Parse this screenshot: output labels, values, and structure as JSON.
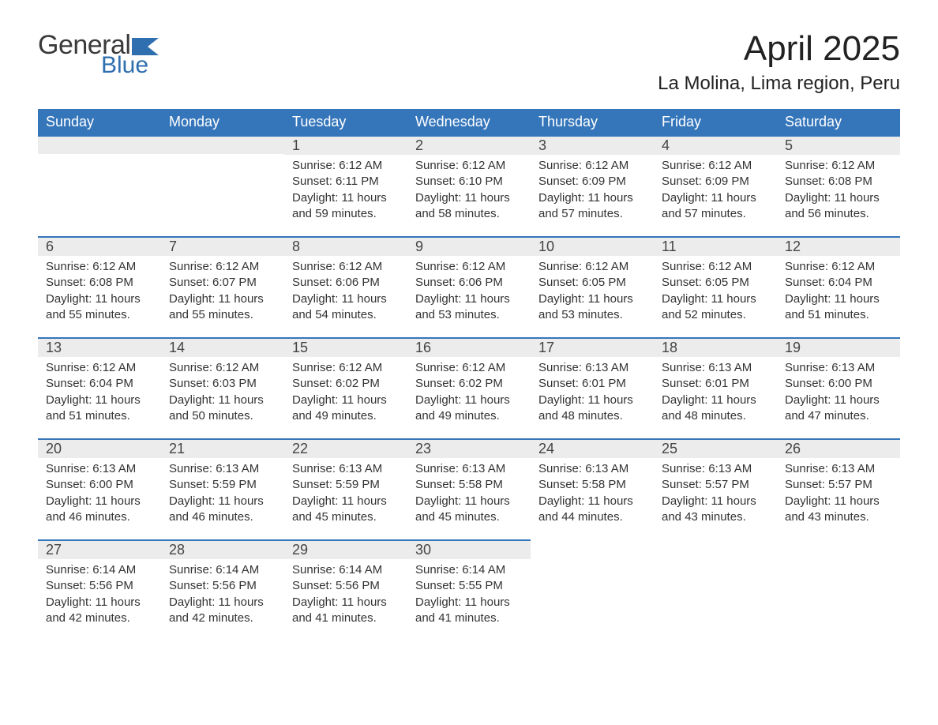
{
  "brand": {
    "word1": "General",
    "word2": "Blue",
    "accent_color": "#2f6fb0"
  },
  "title": "April 2025",
  "location": "La Molina, Lima region, Peru",
  "colors": {
    "header_bg": "#3576bb",
    "header_text": "#ffffff",
    "daynum_bg": "#ececec",
    "row_border": "#3576bb",
    "body_text": "#333333"
  },
  "weekdays": [
    "Sunday",
    "Monday",
    "Tuesday",
    "Wednesday",
    "Thursday",
    "Friday",
    "Saturday"
  ],
  "weeks": [
    [
      null,
      null,
      {
        "n": "1",
        "sr": "Sunrise: 6:12 AM",
        "ss": "Sunset: 6:11 PM",
        "dl": "Daylight: 11 hours and 59 minutes."
      },
      {
        "n": "2",
        "sr": "Sunrise: 6:12 AM",
        "ss": "Sunset: 6:10 PM",
        "dl": "Daylight: 11 hours and 58 minutes."
      },
      {
        "n": "3",
        "sr": "Sunrise: 6:12 AM",
        "ss": "Sunset: 6:09 PM",
        "dl": "Daylight: 11 hours and 57 minutes."
      },
      {
        "n": "4",
        "sr": "Sunrise: 6:12 AM",
        "ss": "Sunset: 6:09 PM",
        "dl": "Daylight: 11 hours and 57 minutes."
      },
      {
        "n": "5",
        "sr": "Sunrise: 6:12 AM",
        "ss": "Sunset: 6:08 PM",
        "dl": "Daylight: 11 hours and 56 minutes."
      }
    ],
    [
      {
        "n": "6",
        "sr": "Sunrise: 6:12 AM",
        "ss": "Sunset: 6:08 PM",
        "dl": "Daylight: 11 hours and 55 minutes."
      },
      {
        "n": "7",
        "sr": "Sunrise: 6:12 AM",
        "ss": "Sunset: 6:07 PM",
        "dl": "Daylight: 11 hours and 55 minutes."
      },
      {
        "n": "8",
        "sr": "Sunrise: 6:12 AM",
        "ss": "Sunset: 6:06 PM",
        "dl": "Daylight: 11 hours and 54 minutes."
      },
      {
        "n": "9",
        "sr": "Sunrise: 6:12 AM",
        "ss": "Sunset: 6:06 PM",
        "dl": "Daylight: 11 hours and 53 minutes."
      },
      {
        "n": "10",
        "sr": "Sunrise: 6:12 AM",
        "ss": "Sunset: 6:05 PM",
        "dl": "Daylight: 11 hours and 53 minutes."
      },
      {
        "n": "11",
        "sr": "Sunrise: 6:12 AM",
        "ss": "Sunset: 6:05 PM",
        "dl": "Daylight: 11 hours and 52 minutes."
      },
      {
        "n": "12",
        "sr": "Sunrise: 6:12 AM",
        "ss": "Sunset: 6:04 PM",
        "dl": "Daylight: 11 hours and 51 minutes."
      }
    ],
    [
      {
        "n": "13",
        "sr": "Sunrise: 6:12 AM",
        "ss": "Sunset: 6:04 PM",
        "dl": "Daylight: 11 hours and 51 minutes."
      },
      {
        "n": "14",
        "sr": "Sunrise: 6:12 AM",
        "ss": "Sunset: 6:03 PM",
        "dl": "Daylight: 11 hours and 50 minutes."
      },
      {
        "n": "15",
        "sr": "Sunrise: 6:12 AM",
        "ss": "Sunset: 6:02 PM",
        "dl": "Daylight: 11 hours and 49 minutes."
      },
      {
        "n": "16",
        "sr": "Sunrise: 6:12 AM",
        "ss": "Sunset: 6:02 PM",
        "dl": "Daylight: 11 hours and 49 minutes."
      },
      {
        "n": "17",
        "sr": "Sunrise: 6:13 AM",
        "ss": "Sunset: 6:01 PM",
        "dl": "Daylight: 11 hours and 48 minutes."
      },
      {
        "n": "18",
        "sr": "Sunrise: 6:13 AM",
        "ss": "Sunset: 6:01 PM",
        "dl": "Daylight: 11 hours and 48 minutes."
      },
      {
        "n": "19",
        "sr": "Sunrise: 6:13 AM",
        "ss": "Sunset: 6:00 PM",
        "dl": "Daylight: 11 hours and 47 minutes."
      }
    ],
    [
      {
        "n": "20",
        "sr": "Sunrise: 6:13 AM",
        "ss": "Sunset: 6:00 PM",
        "dl": "Daylight: 11 hours and 46 minutes."
      },
      {
        "n": "21",
        "sr": "Sunrise: 6:13 AM",
        "ss": "Sunset: 5:59 PM",
        "dl": "Daylight: 11 hours and 46 minutes."
      },
      {
        "n": "22",
        "sr": "Sunrise: 6:13 AM",
        "ss": "Sunset: 5:59 PM",
        "dl": "Daylight: 11 hours and 45 minutes."
      },
      {
        "n": "23",
        "sr": "Sunrise: 6:13 AM",
        "ss": "Sunset: 5:58 PM",
        "dl": "Daylight: 11 hours and 45 minutes."
      },
      {
        "n": "24",
        "sr": "Sunrise: 6:13 AM",
        "ss": "Sunset: 5:58 PM",
        "dl": "Daylight: 11 hours and 44 minutes."
      },
      {
        "n": "25",
        "sr": "Sunrise: 6:13 AM",
        "ss": "Sunset: 5:57 PM",
        "dl": "Daylight: 11 hours and 43 minutes."
      },
      {
        "n": "26",
        "sr": "Sunrise: 6:13 AM",
        "ss": "Sunset: 5:57 PM",
        "dl": "Daylight: 11 hours and 43 minutes."
      }
    ],
    [
      {
        "n": "27",
        "sr": "Sunrise: 6:14 AM",
        "ss": "Sunset: 5:56 PM",
        "dl": "Daylight: 11 hours and 42 minutes."
      },
      {
        "n": "28",
        "sr": "Sunrise: 6:14 AM",
        "ss": "Sunset: 5:56 PM",
        "dl": "Daylight: 11 hours and 42 minutes."
      },
      {
        "n": "29",
        "sr": "Sunrise: 6:14 AM",
        "ss": "Sunset: 5:56 PM",
        "dl": "Daylight: 11 hours and 41 minutes."
      },
      {
        "n": "30",
        "sr": "Sunrise: 6:14 AM",
        "ss": "Sunset: 5:55 PM",
        "dl": "Daylight: 11 hours and 41 minutes."
      },
      null,
      null,
      null
    ]
  ]
}
